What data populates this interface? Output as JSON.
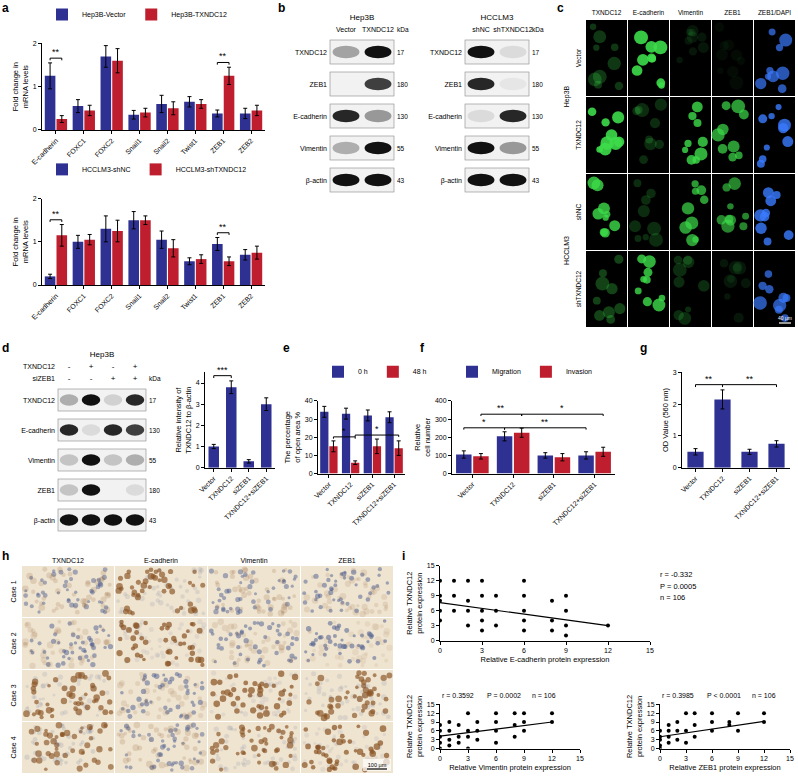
{
  "panel_labels": [
    "a",
    "b",
    "c",
    "d",
    "e",
    "f",
    "g",
    "h",
    "i"
  ],
  "chart_data": [
    {
      "type": "bar",
      "ylabel": "Fold change in mRNA levels",
      "grid": false,
      "legend": "top left",
      "categories": [
        "E-cadherin",
        "FOXC1",
        "FOXC2",
        "Snail1",
        "Snail2",
        "Twist1",
        "ZEB1",
        "ZEB2"
      ],
      "series": [
        {
          "name": "Hep3B-Vector",
          "color": "#2e3192",
          "values": [
            1.25,
            0.55,
            1.7,
            0.35,
            0.6,
            0.65,
            0.38,
            0.38
          ],
          "errors": [
            0.3,
            0.15,
            0.25,
            0.1,
            0.2,
            0.12,
            0.08,
            0.12
          ]
        },
        {
          "name": "Hep3B-TXNDC12",
          "color": "#be1e2d",
          "values": [
            0.25,
            0.45,
            1.6,
            0.4,
            0.5,
            0.6,
            1.25,
            0.45
          ],
          "errors": [
            0.08,
            0.12,
            0.28,
            0.1,
            0.15,
            0.1,
            0.2,
            0.12
          ]
        }
      ],
      "ylim": [
        0,
        2
      ],
      "yticks": [
        0,
        1,
        2
      ],
      "significance": [
        {
          "category": 0,
          "label": "**"
        },
        {
          "category": 6,
          "label": "**"
        }
      ]
    },
    {
      "type": "bar",
      "ylabel": "Fold change in mRNA levels",
      "grid": false,
      "legend": "top left",
      "categories": [
        "E-cadherin",
        "FOXC1",
        "FOXC2",
        "Snail1",
        "Snail2",
        "Twist1",
        "ZEB1",
        "ZEB2"
      ],
      "series": [
        {
          "name": "HCCLM3-shNC",
          "color": "#2e3192",
          "values": [
            0.2,
            1.0,
            1.3,
            1.5,
            1.05,
            0.55,
            0.95,
            0.7
          ],
          "errors": [
            0.05,
            0.15,
            0.3,
            0.2,
            0.2,
            0.08,
            0.15,
            0.12
          ]
        },
        {
          "name": "HCCLM3-shTXNDC12",
          "color": "#be1e2d",
          "values": [
            1.15,
            1.05,
            1.25,
            1.5,
            0.85,
            0.6,
            0.55,
            0.75
          ],
          "errors": [
            0.25,
            0.12,
            0.25,
            0.1,
            0.2,
            0.1,
            0.1,
            0.15
          ]
        }
      ],
      "ylim": [
        0,
        2
      ],
      "yticks": [
        0,
        1,
        2
      ],
      "significance": [
        {
          "category": 0,
          "label": "**"
        },
        {
          "category": 6,
          "label": "**"
        }
      ]
    },
    {
      "type": "bar",
      "ylabel": "Relative intensity of TXNDC12 to β-actin",
      "grid": false,
      "categories": [
        "Vector",
        "TXNDC12",
        "siZEB1",
        "TXNDC12+siZEB1"
      ],
      "values": [
        1.0,
        3.8,
        0.3,
        3.0
      ],
      "errors": [
        0.1,
        0.3,
        0.08,
        0.3
      ],
      "color": "#2e3192",
      "ylim": [
        0,
        4.5
      ],
      "yticks": [
        0,
        1,
        2,
        3,
        4
      ],
      "significance": [
        {
          "from": 0,
          "to": 1,
          "label": "***"
        }
      ]
    },
    {
      "type": "bar",
      "ylabel": "The percentage of open area %",
      "grid": false,
      "legend": "top left",
      "categories": [
        "Vector",
        "TXNDC12",
        "siZEB1",
        "TXNDC12+siZEB1"
      ],
      "series": [
        {
          "name": "0 h",
          "color": "#2e3192",
          "values": [
            34,
            33,
            32,
            31
          ],
          "errors": [
            3,
            3,
            3,
            3
          ]
        },
        {
          "name": "48 h",
          "color": "#be1e2d",
          "values": [
            15,
            6,
            15,
            14
          ],
          "errors": [
            3,
            1,
            4,
            4
          ]
        }
      ],
      "ylim": [
        0,
        40
      ],
      "yticks": [
        0,
        10,
        20,
        30,
        40
      ],
      "significance": [
        {
          "series": "48 h",
          "from": 0,
          "to": 1,
          "label": "*"
        },
        {
          "series": "48 h",
          "from": 1,
          "to": 3,
          "label": "*"
        }
      ]
    },
    {
      "type": "bar",
      "ylabel": "Relative cell number",
      "grid": false,
      "legend": "top left",
      "categories": [
        "Vector",
        "TXNDC12",
        "siZEB1",
        "TXNDC12+siZEB1"
      ],
      "series": [
        {
          "name": "Migration",
          "color": "#2e3192",
          "values": [
            105,
            205,
            100,
            100
          ],
          "errors": [
            20,
            25,
            15,
            20
          ]
        },
        {
          "name": "Invasion",
          "color": "#be1e2d",
          "values": [
            95,
            225,
            90,
            120
          ],
          "errors": [
            15,
            25,
            20,
            25
          ]
        }
      ],
      "ylim": [
        0,
        400
      ],
      "yticks": [
        0,
        100,
        200,
        300,
        400
      ],
      "significance": [
        {
          "series": "Migration",
          "from": 0,
          "to": 1,
          "label": "*"
        },
        {
          "series": "Migration",
          "from": 1,
          "to": 3,
          "label": "**"
        },
        {
          "series": "Invasion",
          "from": 0,
          "to": 1,
          "label": "**"
        },
        {
          "series": "Invasion",
          "from": 1,
          "to": 3,
          "label": "*"
        }
      ]
    },
    {
      "type": "bar",
      "ylabel": "OD Value (560 nm)",
      "grid": false,
      "categories": [
        "Vector",
        "TXNDC12",
        "siZEB1",
        "TXNDC12+siZEB1"
      ],
      "values": [
        0.5,
        2.15,
        0.5,
        0.75
      ],
      "errors": [
        0.1,
        0.3,
        0.08,
        0.1
      ],
      "color": "#2e3192",
      "ylim": [
        0,
        3
      ],
      "yticks": [
        0,
        1,
        2,
        3
      ],
      "significance": [
        {
          "from": 0,
          "to": 1,
          "label": "**"
        },
        {
          "from": 1,
          "to": 3,
          "label": "**"
        }
      ]
    },
    {
      "type": "scatter",
      "xlabel": "Relative E-cadherin protein expression",
      "ylabel": "Relative TXNDC12 protein expression",
      "color": "#000000",
      "marker": "circle",
      "grid": false,
      "x": [
        0,
        0,
        0,
        0,
        0,
        1,
        1,
        1,
        2,
        2,
        2,
        2,
        3,
        3,
        3,
        3,
        3,
        4,
        4,
        4,
        6,
        6,
        6,
        6,
        6,
        8,
        8,
        8,
        9,
        9,
        9,
        9,
        12
      ],
      "y": [
        12,
        9,
        8,
        6,
        4,
        12,
        9,
        6,
        12,
        8,
        6,
        3,
        12,
        9,
        6,
        4,
        2,
        9,
        6,
        3,
        12,
        9,
        6,
        4,
        2,
        8,
        4,
        2,
        9,
        6,
        3,
        1,
        3
      ],
      "fit": {
        "x": [
          0,
          12
        ],
        "y": [
          7.6,
          3.0
        ]
      },
      "xlim": [
        0,
        15
      ],
      "ylim": [
        0,
        15
      ],
      "xticks": [
        0,
        3,
        6,
        9,
        12,
        15
      ],
      "yticks": [
        0,
        3,
        6,
        9,
        12,
        15
      ],
      "annotations": [
        "r = -0.332",
        "P = 0.0005",
        "n = 106"
      ]
    },
    {
      "type": "scatter",
      "xlabel": "Relative Vimentin protein expression",
      "ylabel": "Relative TXNDC12 protein expression",
      "color": "#000000",
      "marker": "circle",
      "grid": false,
      "x": [
        0,
        0,
        0,
        0,
        0,
        1,
        1,
        1,
        1,
        2,
        2,
        2,
        3,
        3,
        3,
        3,
        4,
        4,
        4,
        6,
        6,
        6,
        6,
        8,
        8,
        8,
        9,
        9,
        9,
        12,
        12
      ],
      "y": [
        0,
        2,
        4,
        6,
        8,
        1,
        3,
        6,
        9,
        2,
        4,
        8,
        0,
        4,
        6,
        12,
        3,
        6,
        9,
        2,
        6,
        9,
        12,
        4,
        8,
        12,
        6,
        9,
        12,
        9,
        12
      ],
      "fit": {
        "x": [
          0,
          12
        ],
        "y": [
          4.2,
          9.0
        ]
      },
      "xlim": [
        0,
        15
      ],
      "ylim": [
        0,
        15
      ],
      "xticks": [
        0,
        3,
        6,
        9,
        12,
        15
      ],
      "yticks": [
        0,
        3,
        6,
        9,
        12,
        15
      ],
      "annotations": [
        "r = 0.3592",
        "P = 0.0002",
        "n = 106"
      ]
    },
    {
      "type": "scatter",
      "xlabel": "Relative ZEB1 protein expression",
      "ylabel": "Relative TXNDC12 protein expression",
      "color": "#000000",
      "marker": "circle",
      "grid": false,
      "x": [
        0,
        0,
        0,
        0,
        0,
        1,
        1,
        1,
        1,
        2,
        2,
        2,
        3,
        3,
        3,
        4,
        4,
        4,
        6,
        6,
        6,
        8,
        8,
        9,
        9,
        12,
        12
      ],
      "y": [
        0,
        1,
        3,
        4,
        6,
        2,
        4,
        6,
        8,
        3,
        6,
        9,
        2,
        6,
        12,
        4,
        8,
        12,
        6,
        9,
        12,
        8,
        9,
        6,
        12,
        9,
        12
      ],
      "fit": {
        "x": [
          0,
          12
        ],
        "y": [
          4.0,
          9.2
        ]
      },
      "xlim": [
        0,
        15
      ],
      "ylim": [
        0,
        15
      ],
      "xticks": [
        0,
        3,
        6,
        9,
        12,
        15
      ],
      "yticks": [
        0,
        3,
        6,
        9,
        12,
        15
      ],
      "annotations": [
        "r = 0.3985",
        "P < 0.0001",
        "n = 106"
      ]
    }
  ],
  "blots": [
    {
      "title": "Hep3B",
      "lanes": [
        "Vector",
        "TXNDC12"
      ],
      "kda_header": "kDa",
      "rows": [
        {
          "name": "TXNDC12",
          "kda": 17,
          "bands": [
            0.35,
            1
          ]
        },
        {
          "name": "ZEB1",
          "kda": 180,
          "bands": [
            0,
            0.8
          ]
        },
        {
          "name": "E-cadherin",
          "kda": 130,
          "bands": [
            0.9,
            0.4
          ]
        },
        {
          "name": "Vimentin",
          "kda": 55,
          "bands": [
            0.3,
            1
          ]
        },
        {
          "name": "β-actin",
          "kda": 43,
          "bands": [
            1,
            1
          ]
        }
      ]
    },
    {
      "title": "HCCLM3",
      "lanes": [
        "shNC",
        "shTXNDC12"
      ],
      "kda_header": "kDa",
      "rows": [
        {
          "name": "TXNDC12",
          "kda": 17,
          "bands": [
            1,
            0.1
          ]
        },
        {
          "name": "ZEB1",
          "kda": 180,
          "bands": [
            0.9,
            0.05
          ]
        },
        {
          "name": "E-cadherin",
          "kda": 130,
          "bands": [
            0.1,
            0.9
          ]
        },
        {
          "name": "Vimentin",
          "kda": 55,
          "bands": [
            1,
            0.4
          ]
        },
        {
          "name": "β-actin",
          "kda": 43,
          "bands": [
            1,
            1
          ]
        }
      ]
    },
    {
      "title": "Hep3B",
      "conditions": [
        {
          "name": "TXNDC12",
          "signs": [
            "-",
            "+",
            "-",
            "+"
          ]
        },
        {
          "name": "siZEB1",
          "signs": [
            "-",
            "-",
            "+",
            "+"
          ]
        }
      ],
      "kda_header": "kDa",
      "rows": [
        {
          "name": "TXNDC12",
          "kda": 17,
          "bands": [
            0.3,
            1,
            0.15,
            0.9
          ]
        },
        {
          "name": "E-cadherin",
          "kda": 130,
          "bands": [
            0.9,
            0.1,
            0.9,
            0.8
          ]
        },
        {
          "name": "Vimentin",
          "kda": 55,
          "bands": [
            0.2,
            1,
            0.2,
            0.3
          ]
        },
        {
          "name": "ZEB1",
          "kda": 180,
          "bands": [
            0.2,
            1,
            0,
            0.1
          ]
        },
        {
          "name": "β-actin",
          "kda": 43,
          "bands": [
            1,
            1,
            1,
            1
          ]
        }
      ]
    }
  ],
  "if_panel": {
    "columns": [
      {
        "name": "TXNDC12",
        "color": "#3ddc4a"
      },
      {
        "name": "E-cadherin",
        "color": "#3ddc4a"
      },
      {
        "name": "Vimentin",
        "color": "#3ddc4a"
      },
      {
        "name": "ZEB1",
        "color": "#3ddc4a"
      },
      {
        "name": "ZEB1/DAPI",
        "color": "#3a7bff"
      }
    ],
    "groups": [
      {
        "name": "Hep3B",
        "rows": [
          "Vector",
          "TXNDC12"
        ]
      },
      {
        "name": "HCCLM3",
        "rows": [
          "shNC",
          "shTXNDC12"
        ]
      }
    ],
    "intensity": [
      [
        0.25,
        0.9,
        0.1,
        0.05,
        0.7
      ],
      [
        0.9,
        0.2,
        0.8,
        0.7,
        0.8
      ],
      [
        0.8,
        0.2,
        0.7,
        0.6,
        0.8
      ],
      [
        0.3,
        0.8,
        0.2,
        0.1,
        0.7
      ]
    ],
    "scale_bar": "40 μm"
  },
  "ihc_panel": {
    "columns": [
      "TXNDC12",
      "E-cadherin",
      "Vimentin",
      "ZEB1"
    ],
    "rows": [
      "Case 1",
      "Case 2",
      "Case 3",
      "Case 4"
    ],
    "intensity": [
      [
        0.2,
        0.8,
        0.2,
        0.15
      ],
      [
        0.15,
        0.85,
        0.15,
        0.1
      ],
      [
        0.8,
        0.15,
        0.85,
        0.8
      ],
      [
        0.75,
        0.2,
        0.8,
        0.85
      ]
    ],
    "scale_bar": "100 μm"
  }
}
